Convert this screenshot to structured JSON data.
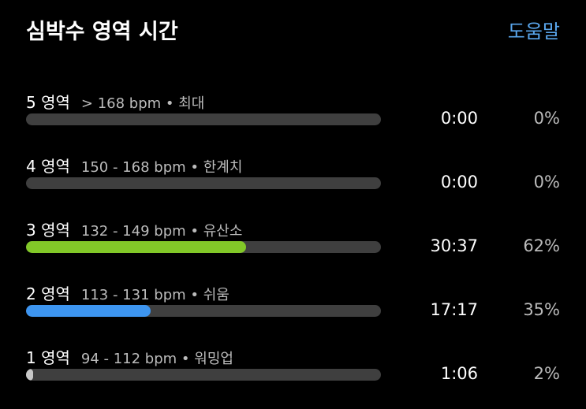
{
  "header": {
    "title": "심박수 영역 시간",
    "help": "도움말"
  },
  "zones": [
    {
      "label": "5 영역",
      "range": "> 168 bpm • 최대",
      "time": "0:00",
      "percent": "0%",
      "fraction": 0,
      "color": "#3f3f3f"
    },
    {
      "label": "4 영역",
      "range": "150 - 168 bpm • 한계치",
      "time": "0:00",
      "percent": "0%",
      "fraction": 0,
      "color": "#3f3f3f"
    },
    {
      "label": "3 영역",
      "range": "132 - 149 bpm • 유산소",
      "time": "30:37",
      "percent": "62%",
      "fraction": 0.62,
      "color": "#82c828"
    },
    {
      "label": "2 영역",
      "range": "113 - 131 bpm • 쉬움",
      "time": "17:17",
      "percent": "35%",
      "fraction": 0.35,
      "color": "#3d95f0"
    },
    {
      "label": "1 영역",
      "range": "94 - 112 bpm • 워밍업",
      "time": "1:06",
      "percent": "2%",
      "fraction": 0.02,
      "color": "#c8c8c8"
    }
  ]
}
